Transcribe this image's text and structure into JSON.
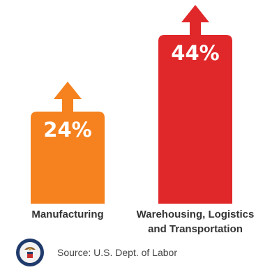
{
  "chart_data": {
    "type": "bar",
    "categories": [
      "Manufacturing",
      "Warehousing, Logistics and Transportation"
    ],
    "category_label_lines": [
      [
        "Manufacturing"
      ],
      [
        "Warehousing, Logistics",
        "and Transportation"
      ]
    ],
    "values": [
      24,
      44
    ],
    "value_labels": [
      "24%",
      "44%"
    ],
    "colors": [
      "#f5821f",
      "#e0282a"
    ],
    "ylim": [
      0,
      50
    ],
    "grid": false,
    "legend": "none",
    "arrow_marks": true
  },
  "footer": {
    "source": "Source: U.S. Dept. of Labor",
    "seal_icon": "dept-of-labor-seal-icon"
  }
}
